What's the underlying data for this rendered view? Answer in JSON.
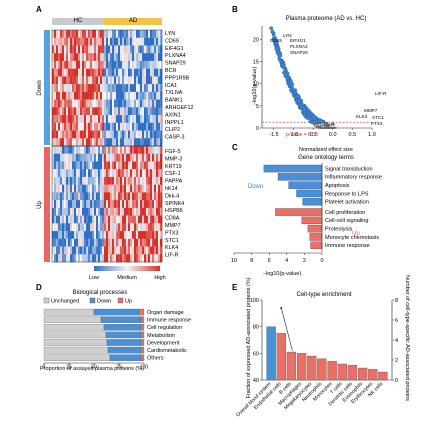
{
  "panels": {
    "a": "A",
    "b": "B",
    "c": "C",
    "d": "D",
    "e": "E"
  },
  "heatmap": {
    "groups": [
      "HC",
      "AD"
    ],
    "row_groups": [
      "Down",
      "Up"
    ],
    "genes_down": [
      "LYN",
      "CD69",
      "EIF4G1",
      "PLXNA4",
      "SNAP29",
      "BCR",
      "PPP1R9B",
      "ICA1",
      "TXLNA",
      "BANK1",
      "ARHGEF12",
      "AXIN1",
      "INPPL1",
      "CLIP2",
      "CASP-3"
    ],
    "genes_up": [
      "FGF-5",
      "MMP-3",
      "KRT19",
      "CSF-1",
      "PAPPA",
      "hK14",
      "Dkk-4",
      "SPINK4",
      "HSPB6",
      "CD8A",
      "MMP7",
      "PTX3",
      "STC1",
      "KLK4",
      "LIF-R"
    ],
    "legend": [
      "Low",
      "Medium",
      "High"
    ],
    "colors": {
      "low": "#2f6fc4",
      "high": "#d7302a",
      "hc_bar": "#c9c9c9",
      "ad_bar": "#f2c14e",
      "down": "#5aa0dc",
      "up": "#e8665d"
    }
  },
  "chart_data": [
    {
      "type": "scatter",
      "title": "Plasma proteome (AD vs. HC)",
      "xlabel": "Normalized effect size",
      "ylabel": "−log10(p-value)",
      "xlim": [
        -1.8,
        1.0
      ],
      "ylim": [
        0,
        23
      ],
      "xticks": [
        "-1.5",
        "-1.0",
        "-0.5",
        "0.0",
        "0.5",
        "1.0"
      ],
      "yticks": [
        "0",
        "5",
        "10",
        "15",
        "20"
      ],
      "threshold_label": "p-value = 0.05",
      "threshold_y": 1.3,
      "labels_left": [
        "CD69",
        "LYN",
        "EIF4G1",
        "PLXNA4",
        "SNAP29"
      ],
      "labels_right": [
        "LIF-R",
        "MMP7",
        "KLK4",
        "STC1",
        "PTX3"
      ]
    },
    {
      "type": "bar",
      "title": "Gene ontology terms",
      "xlabel": "−log10(p-value)",
      "xlim": [
        10,
        0
      ],
      "xticks": [
        "10",
        "8",
        "6",
        "4",
        "2",
        "0"
      ],
      "group_labels": [
        "Down",
        "Up"
      ],
      "categories": [
        "Signal transduction",
        "Inflammatory response",
        "Apoptosis",
        "Response to LPS",
        "Platelet activation",
        "Cell proliferation",
        "Cell-cell signaling",
        "Proteolysis",
        "Monocyte chemotaxis",
        "Immune response"
      ],
      "values": [
        6.6,
        5.0,
        3.8,
        2.9,
        2.2,
        5.3,
        2.3,
        1.6,
        1.4,
        1.3
      ],
      "group": [
        "down",
        "down",
        "down",
        "down",
        "down",
        "up",
        "up",
        "up",
        "up",
        "up"
      ]
    },
    {
      "type": "bar",
      "title": "Biological processes",
      "legend": [
        "Unchanged",
        "Down",
        "Up"
      ],
      "xlabel": "Proportion of assayed plasma proteins (%)",
      "xticks": [
        "0",
        "25",
        "50",
        "75",
        "100"
      ],
      "categories": [
        "Organ damage",
        "Immune response",
        "Cell regulation",
        "Metabolism",
        "Development",
        "Cardiometabolic",
        "Others"
      ],
      "series": [
        {
          "name": "Unchanged",
          "values": [
            50,
            57,
            60,
            62,
            63,
            64,
            66
          ]
        },
        {
          "name": "Down",
          "values": [
            45,
            40,
            37,
            35,
            34,
            33,
            31
          ]
        },
        {
          "name": "Up",
          "values": [
            5,
            3,
            3,
            3,
            3,
            3,
            3
          ]
        }
      ]
    },
    {
      "type": "bar",
      "title": "Cell-type enrichment",
      "ylabel": "Fraction of expressed AD-associated proteins (%)",
      "y2label": "Number of cell-type-specific AD-associated proteins",
      "ylim": [
        40,
        100
      ],
      "y2lim": [
        0,
        8
      ],
      "yticks": [
        "40",
        "60",
        "80",
        "100"
      ],
      "y2ticks": [
        "0",
        "2",
        "4",
        "6",
        "8"
      ],
      "categories": [
        "Overall blood system",
        "Endothelial cells",
        "B cells",
        "Macrophages",
        "Megakaryocytes",
        "Neutrophils",
        "Monocytes",
        "T cells",
        "Dendritic cells",
        "Eosinophils",
        "Erythrocytes",
        "NK cells"
      ],
      "values": [
        80,
        75,
        61,
        60,
        58,
        56,
        54,
        52,
        51,
        49,
        48,
        46
      ],
      "first_bar_color": "#4a90d6",
      "bar_color": "#ea6f66"
    }
  ]
}
